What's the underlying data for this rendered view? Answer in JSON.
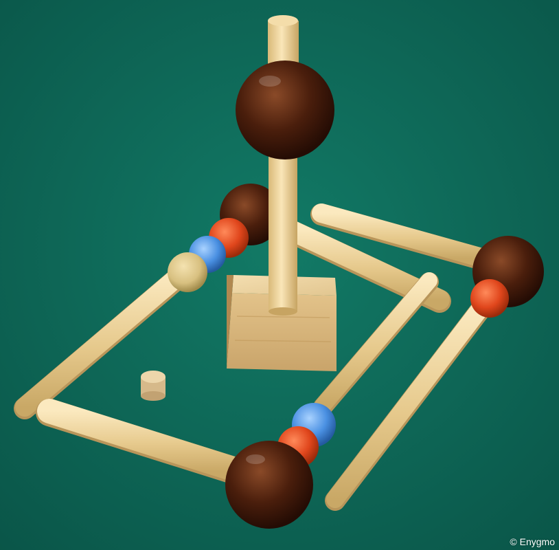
{
  "photo": {
    "credit": "© Enygmo"
  },
  "colors": {
    "felt": "#0e6a58",
    "wood_light": "#ecd39a",
    "wood_dark_ball": "#4a1e0c",
    "red_bead": "#e0461c",
    "blue_bead": "#4a90e2",
    "natural_bead": "#d8c080"
  }
}
